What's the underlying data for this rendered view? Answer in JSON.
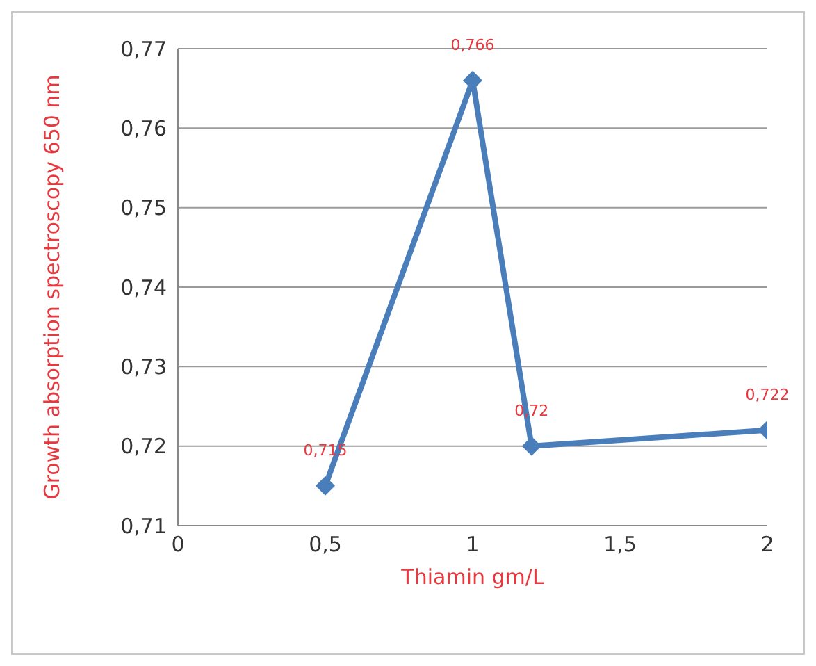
{
  "chart_data": {
    "type": "line",
    "xlabel": "Thiamin gm/L",
    "ylabel": "Growth absorption spectroscopy  650 nm",
    "x": [
      0.5,
      1,
      1.2,
      2
    ],
    "series": [
      {
        "color": "#4a7ebb",
        "values": [
          0.715,
          0.766,
          0.72,
          0.722
        ],
        "value_labels": [
          "0,715",
          "0,766",
          "0,72",
          "0,722"
        ]
      }
    ],
    "xlim": [
      0,
      2
    ],
    "xticks": [
      {
        "value": 0,
        "label": "0"
      },
      {
        "value": 0.5,
        "label": "0,5"
      },
      {
        "value": 1,
        "label": "1"
      },
      {
        "value": 1.5,
        "label": "1,5"
      },
      {
        "value": 2,
        "label": "2"
      }
    ],
    "ylim": [
      0.71,
      0.77
    ],
    "yticks": [
      {
        "value": 0.71,
        "label": "0,71"
      },
      {
        "value": 0.72,
        "label": "0,72"
      },
      {
        "value": 0.73,
        "label": "0,73"
      },
      {
        "value": 0.74,
        "label": "0,74"
      },
      {
        "value": 0.75,
        "label": "0,75"
      },
      {
        "value": 0.76,
        "label": "0,76"
      },
      {
        "value": 0.77,
        "label": "0,77"
      }
    ],
    "grid": "y",
    "marker": "diamond",
    "line_style": "solid",
    "legend": false
  }
}
